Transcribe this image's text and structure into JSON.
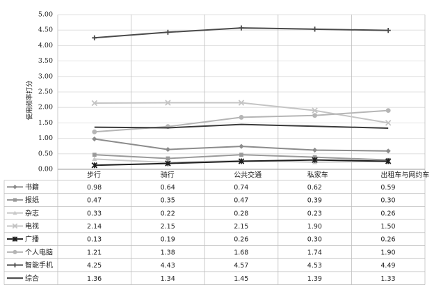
{
  "chart_data": {
    "type": "line",
    "title": "",
    "xlabel": "",
    "ylabel": "使用频率打分",
    "ylim": [
      0,
      5
    ],
    "yticks": [
      "0.00",
      "0.50",
      "1.00",
      "1.50",
      "2.00",
      "2.50",
      "3.00",
      "3.50",
      "4.00",
      "4.50",
      "5.00"
    ],
    "categories": [
      "步行",
      "骑行",
      "公共交通",
      "私家车",
      "出租车与网约车"
    ],
    "grid": true,
    "legend": "data-table",
    "series": [
      {
        "name": "书籍",
        "values": [
          0.98,
          0.64,
          0.74,
          0.62,
          0.59
        ],
        "labels": [
          "0.98",
          "0.64",
          "0.74",
          "0.62",
          "0.59"
        ],
        "color": "#8c8c8c",
        "marker": "diamond"
      },
      {
        "name": "报纸",
        "values": [
          0.47,
          0.35,
          0.47,
          0.39,
          0.3
        ],
        "labels": [
          "0.47",
          "0.35",
          "0.47",
          "0.39",
          "0.30"
        ],
        "color": "#9a9a9a",
        "marker": "square"
      },
      {
        "name": "杂志",
        "values": [
          0.33,
          0.22,
          0.28,
          0.23,
          0.26
        ],
        "labels": [
          "0.33",
          "0.22",
          "0.28",
          "0.23",
          "0.26"
        ],
        "color": "#c8c8c8",
        "marker": "triangle"
      },
      {
        "name": "电视",
        "values": [
          2.14,
          2.15,
          2.15,
          1.9,
          1.5
        ],
        "labels": [
          "2.14",
          "2.15",
          "2.15",
          "1.90",
          "1.50"
        ],
        "color": "#c4c4c4",
        "marker": "x"
      },
      {
        "name": "广播",
        "values": [
          0.13,
          0.19,
          0.26,
          0.3,
          0.26
        ],
        "labels": [
          "0.13",
          "0.19",
          "0.26",
          "0.30",
          "0.26"
        ],
        "color": "#1e1e1e",
        "marker": "star"
      },
      {
        "name": "个人电脑",
        "values": [
          1.21,
          1.38,
          1.68,
          1.74,
          1.9
        ],
        "labels": [
          "1.21",
          "1.38",
          "1.68",
          "1.74",
          "1.90"
        ],
        "color": "#b5b5b5",
        "marker": "circle"
      },
      {
        "name": "智能手机",
        "values": [
          4.25,
          4.43,
          4.57,
          4.53,
          4.49
        ],
        "labels": [
          "4.25",
          "4.43",
          "4.57",
          "4.53",
          "4.49"
        ],
        "color": "#4a4a4a",
        "marker": "plus"
      },
      {
        "name": "综合",
        "values": [
          1.36,
          1.34,
          1.45,
          1.39,
          1.33
        ],
        "labels": [
          "1.36",
          "1.34",
          "1.45",
          "1.39",
          "1.33"
        ],
        "color": "#3a3a3a",
        "marker": "none"
      }
    ]
  }
}
